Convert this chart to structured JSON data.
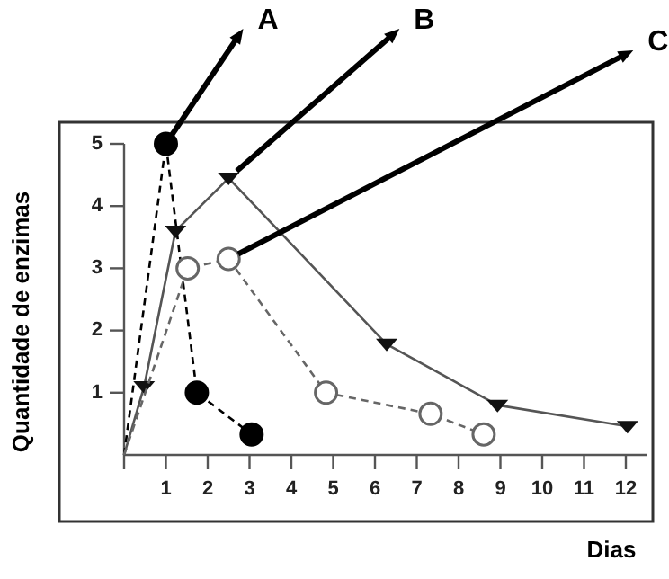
{
  "chart_data": {
    "type": "line",
    "xlabel": "Dias",
    "ylabel": "Quantidade de enzimas",
    "xlim": [
      0,
      12.5
    ],
    "ylim": [
      0,
      5
    ],
    "xticks": [
      1,
      2,
      3,
      4,
      5,
      6,
      7,
      8,
      9,
      10,
      11,
      12
    ],
    "yticks": [
      1,
      2,
      3,
      4,
      5
    ],
    "grid": false,
    "annotations": [
      "A",
      "B",
      "C"
    ],
    "series": [
      {
        "color": "#000000",
        "marker": "circle",
        "line_style": "dashed",
        "x": [
          0,
          1,
          1.74,
          3.05
        ],
        "values": [
          0,
          5,
          1,
          0.33
        ]
      },
      {
        "color": "#555555",
        "marker": "triangle",
        "line_style": "solid",
        "x": [
          0,
          0.48,
          1.23,
          2.5,
          6.28,
          8.93,
          12.04
        ],
        "values": [
          0,
          1.1,
          3.6,
          4.45,
          1.78,
          0.8,
          0.46
        ]
      },
      {
        "color": "#666666",
        "marker": "circle",
        "line_style": "dashed",
        "x": [
          0,
          1.52,
          2.5,
          4.83,
          7.33,
          8.6
        ],
        "values": [
          0,
          3,
          3.15,
          1,
          0.66,
          0.33
        ]
      }
    ]
  }
}
